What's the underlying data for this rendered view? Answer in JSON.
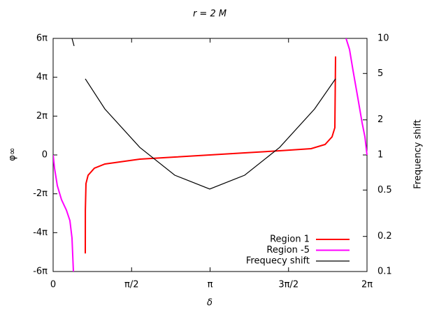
{
  "chart_data": {
    "type": "line",
    "title": "r = 2 M",
    "x_label": "δ",
    "y_label": "φ∞",
    "y2_label": "Frequency shift",
    "xlim": [
      0,
      6.2832
    ],
    "ylim": [
      -18.85,
      18.85
    ],
    "y2lim": [
      0.1,
      10
    ],
    "y2_log": true,
    "xticks": [
      {
        "value": 0,
        "label": "0"
      },
      {
        "value": 1.5708,
        "label": "π/2"
      },
      {
        "value": 3.1416,
        "label": "π"
      },
      {
        "value": 4.7124,
        "label": "3π/2"
      },
      {
        "value": 6.2832,
        "label": "2π"
      }
    ],
    "yticks": [
      {
        "value": 18.85,
        "label": "6π"
      },
      {
        "value": 12.566,
        "label": "4π"
      },
      {
        "value": 6.283,
        "label": "2π"
      },
      0,
      {
        "value": -6.283,
        "label": "-2π"
      },
      {
        "value": -12.566,
        "label": "-4π"
      },
      {
        "value": -18.85,
        "label": "-6π"
      }
    ],
    "y2ticks": [
      0.1,
      0.2,
      0.5,
      1,
      2,
      5,
      10
    ],
    "legend": "lower right",
    "series": [
      {
        "name": "Region 1",
        "color": "#ff0000",
        "x": [
          0.644,
          0.645,
          0.658,
          0.7,
          0.826,
          1.036,
          1.735,
          2.435,
          3.135,
          3.834,
          4.534,
          5.164,
          5.443,
          5.583,
          5.639,
          5.653
        ],
        "values": [
          -15.93,
          -8.93,
          -4.63,
          -3.28,
          -2.15,
          -1.47,
          -0.68,
          -0.34,
          0,
          0.34,
          0.68,
          1.02,
          1.69,
          2.94,
          4.41,
          15.93
        ]
      },
      {
        "name": "Region -5",
        "color": "#ff00ff",
        "x": [
          0,
          0.028,
          0.084,
          0.168,
          0.266,
          0.336,
          0.378,
          0.406,
          null,
          5.863,
          5.933,
          6.003,
          6.101,
          6.185,
          6.241,
          6.283
        ],
        "values": [
          0,
          -2.15,
          -4.97,
          -7.23,
          -8.93,
          -10.62,
          -13.44,
          -18.85,
          null,
          18.85,
          17.06,
          13.67,
          9.15,
          5.2,
          2.94,
          0
        ]
      },
      {
        "name": "Frequecy shift",
        "color": "#000000",
        "axis": "y2",
        "x": [
          0.378,
          0.42,
          null,
          0.644,
          1.036,
          1.735,
          2.435,
          3.135,
          3.834,
          4.534,
          5.234,
          5.653
        ],
        "values": [
          10,
          8.6,
          null,
          4.5,
          2.48,
          1.16,
          0.67,
          0.51,
          0.67,
          1.16,
          2.48,
          4.5
        ]
      }
    ]
  }
}
